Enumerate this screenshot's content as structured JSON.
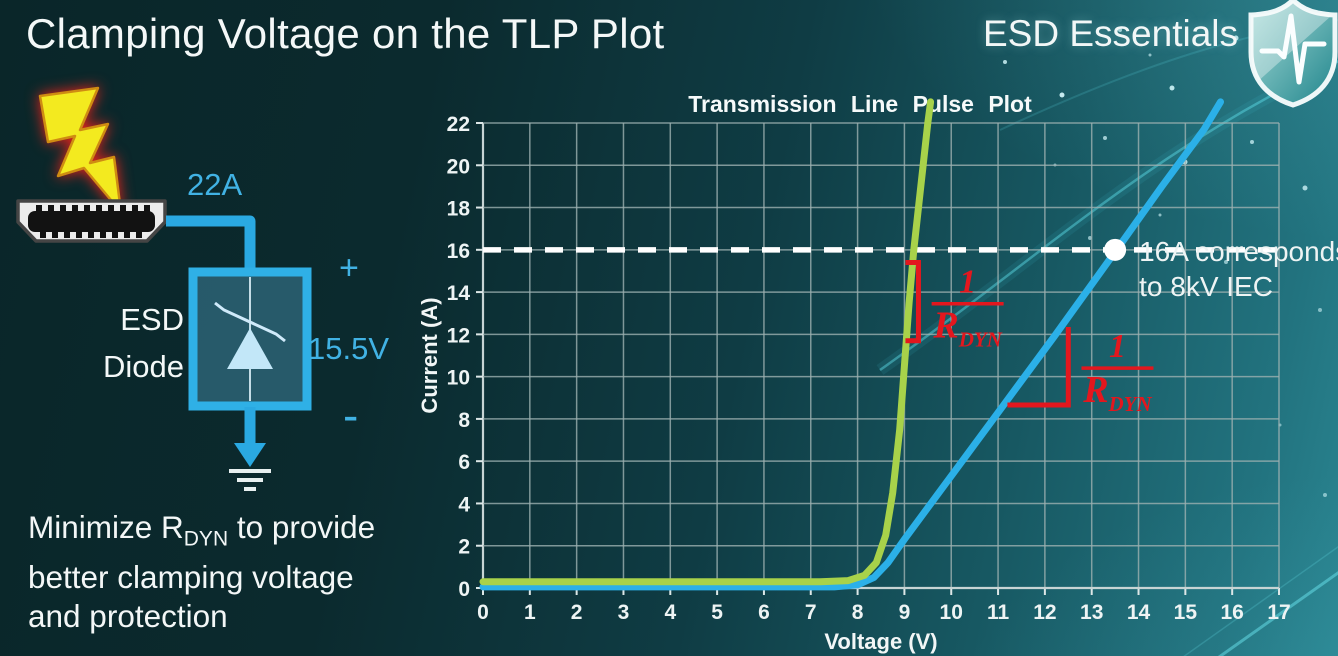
{
  "header": {
    "title": "Clamping Voltage on the TLP Plot",
    "brand": "ESD Essentials",
    "brand_icon": "shield-pulse-icon"
  },
  "diagram": {
    "lightning_icon": "lightning-bolt-icon",
    "connector_icon": "hdmi-connector-icon",
    "ground_icon": "ground-symbol-icon",
    "surge_current": "22A",
    "device_line1": "ESD",
    "device_line2": "Diode",
    "polarity_plus": "+",
    "clamp_voltage": "15.5V",
    "polarity_minus": "-",
    "accent_color": "#2aa9e2"
  },
  "note": {
    "line1_pre": "Minimize R",
    "line1_sub": "DYN",
    "line1_post": " to provide",
    "line2": "better clamping voltage",
    "line3": "and protection"
  },
  "chart_data": {
    "type": "line",
    "title": "Transmission Line Pulse Plot",
    "xlabel": "Voltage (V)",
    "ylabel": "Current (A)",
    "xlim": [
      0,
      17
    ],
    "ylim": [
      0,
      22
    ],
    "x_tick_step": 1,
    "y_tick_step": 2,
    "grid": true,
    "legend": "none",
    "series": [
      {
        "id": "blue-higher-rdyn-curve",
        "color": "#2bb0e8",
        "points": [
          [
            0,
            0.05
          ],
          [
            7.5,
            0.05
          ],
          [
            8.0,
            0.15
          ],
          [
            8.35,
            0.5
          ],
          [
            8.65,
            1.2
          ],
          [
            9.0,
            2.3
          ],
          [
            9.5,
            3.8
          ],
          [
            10.2,
            5.9
          ],
          [
            11.2,
            8.9
          ],
          [
            12.2,
            11.9
          ],
          [
            13.5,
            15.9
          ],
          [
            14.5,
            19.0
          ],
          [
            15.4,
            21.7
          ],
          [
            15.75,
            23.0
          ]
        ]
      },
      {
        "id": "green-steep-clamp-curve",
        "color": "#a8d24a",
        "points": [
          [
            0,
            0.3
          ],
          [
            7.2,
            0.3
          ],
          [
            7.8,
            0.35
          ],
          [
            8.15,
            0.6
          ],
          [
            8.4,
            1.2
          ],
          [
            8.6,
            2.5
          ],
          [
            8.75,
            4.5
          ],
          [
            8.9,
            7.5
          ],
          [
            9.0,
            10.5
          ],
          [
            9.1,
            13.5
          ],
          [
            9.2,
            16.0
          ],
          [
            9.35,
            19.0
          ],
          [
            9.5,
            22.0
          ],
          [
            9.56,
            23.0
          ]
        ]
      }
    ],
    "reference_line": {
      "y": 16,
      "style": "dashed",
      "color": "#ffffff"
    },
    "marker_point": {
      "x": 13.5,
      "y": 16
    },
    "callout": {
      "line1": "16A corresponds",
      "line2": "to 8kV IEC"
    },
    "slope_annotations": [
      {
        "shape": "bracket",
        "x": 9.3,
        "y_from": 11.7,
        "y_to": 15.4,
        "numerator": "1",
        "denominator": "R",
        "denominator_sub": "DYN",
        "frac": {
          "x": 10.35,
          "bar_y": 13.45
        }
      },
      {
        "shape": "right-angle",
        "x_from": 11.2,
        "x_to": 12.5,
        "y_base": 8.66,
        "y_top": 12.35,
        "numerator": "1",
        "denominator": "R",
        "denominator_sub": "DYN",
        "frac": {
          "x": 13.55,
          "bar_y": 10.4
        }
      }
    ],
    "colors": {
      "grid": "#9cb0b0",
      "axis_text": "#eef4f4",
      "annotation_red": "#e3171e"
    }
  }
}
